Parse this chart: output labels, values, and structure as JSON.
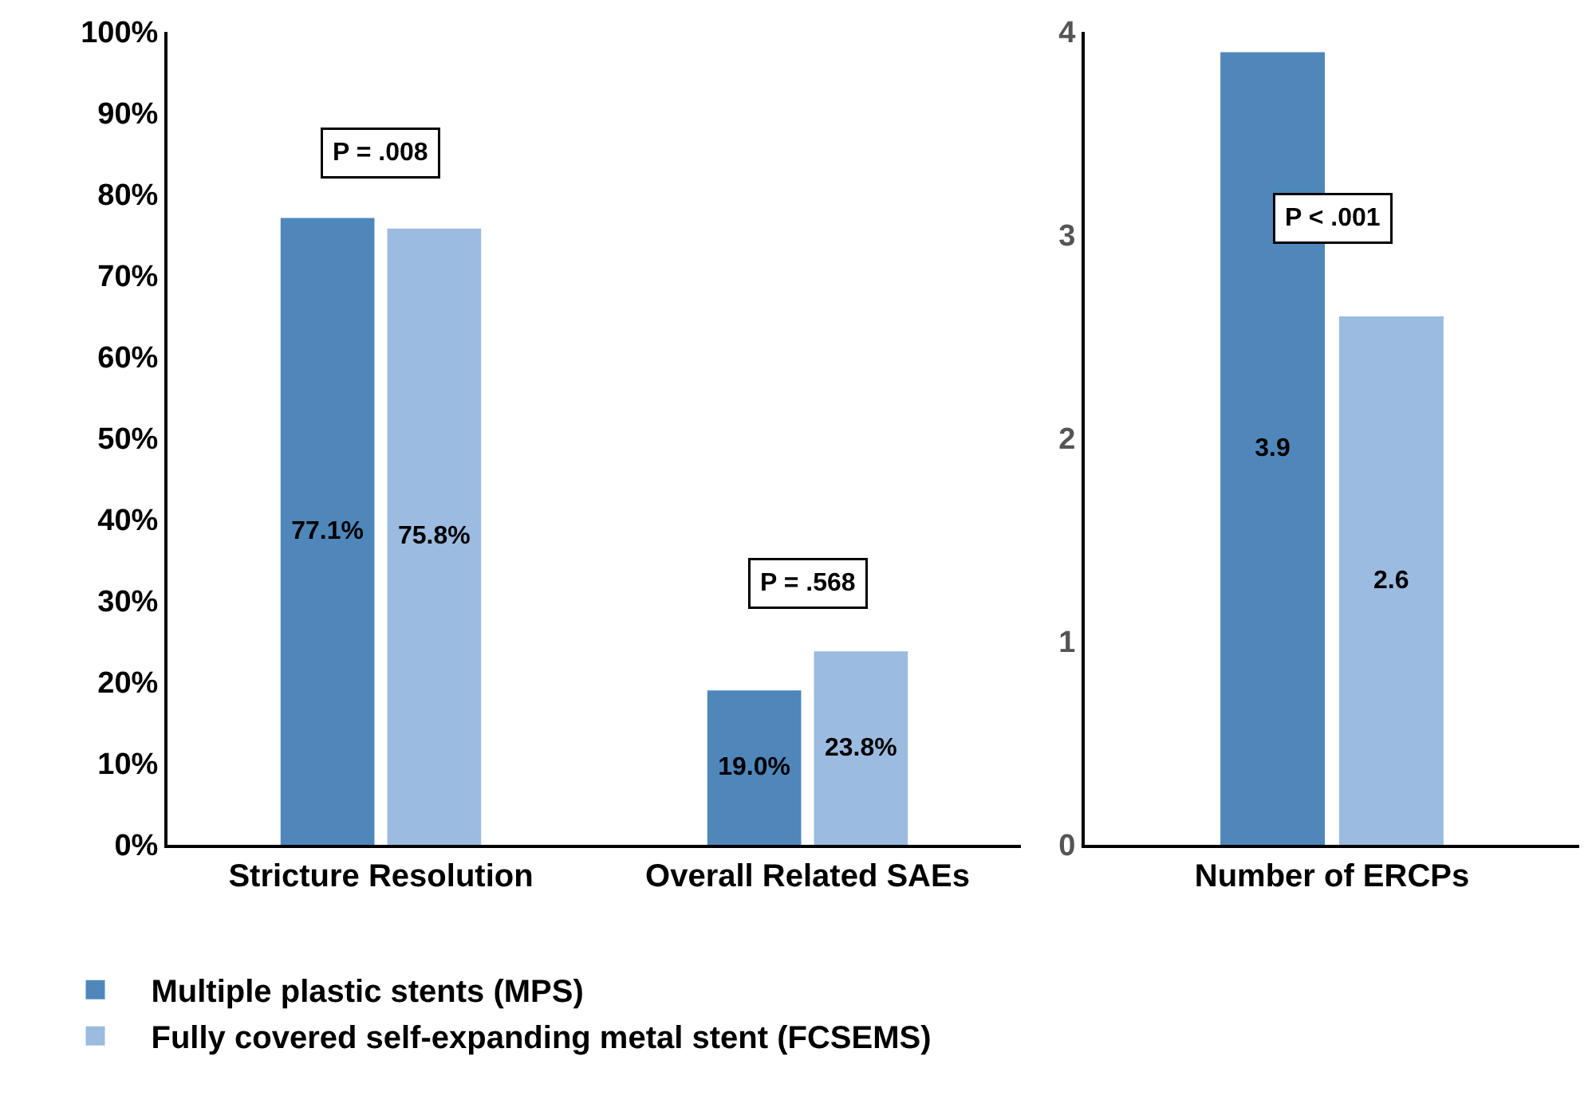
{
  "chart_data": [
    {
      "type": "bar",
      "categories": [
        "Stricture Resolution",
        "Overall Related SAEs"
      ],
      "series": [
        {
          "name": "Multiple plastic stents (MPS)",
          "color": "#4f87bb",
          "values": [
            77.1,
            19.0
          ],
          "value_labels": [
            "77.1%",
            "19.0%"
          ]
        },
        {
          "name": "Fully covered self-expanding metal stent (FCSEMS)",
          "color": "#9bbbe0",
          "values": [
            75.8,
            23.8
          ],
          "value_labels": [
            "75.8%",
            "23.8%"
          ]
        }
      ],
      "ylim": [
        0,
        100
      ],
      "yticks": [
        {
          "value": 0,
          "label": "0%"
        },
        {
          "value": 10,
          "label": "10%"
        },
        {
          "value": 20,
          "label": "20%"
        },
        {
          "value": 30,
          "label": "30%"
        },
        {
          "value": 40,
          "label": "40%"
        },
        {
          "value": 50,
          "label": "50%"
        },
        {
          "value": 60,
          "label": "60%"
        },
        {
          "value": 70,
          "label": "70%"
        },
        {
          "value": 80,
          "label": "80%"
        },
        {
          "value": 90,
          "label": "90%"
        },
        {
          "value": 100,
          "label": "100%"
        }
      ],
      "annotations": [
        "P = .008",
        "P = .568"
      ],
      "legend": "bottom",
      "grid": false
    },
    {
      "type": "bar",
      "categories": [
        "Number of ERCPs"
      ],
      "series": [
        {
          "color": "#4f87bb",
          "values": [
            3.9
          ]
        },
        {
          "color": "#9bbbe0",
          "values": [
            2.6
          ]
        }
      ],
      "ylim": [
        0,
        4
      ],
      "yticks": [
        0,
        1,
        2,
        3,
        4
      ],
      "data_labels": true,
      "annotations": [
        "P < .001"
      ],
      "legend": false,
      "grid": false
    }
  ]
}
